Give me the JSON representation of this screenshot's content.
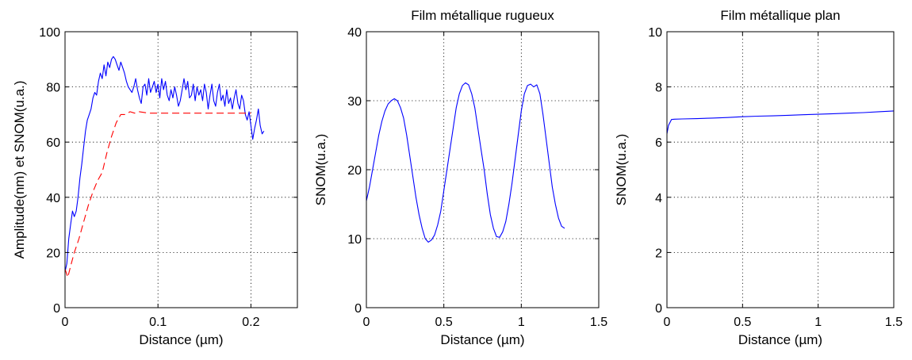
{
  "chart_data": [
    {
      "type": "line",
      "title": "",
      "xlabel": "Distance (µm)",
      "ylabel": "Amplitude(nm) et SNOM(u.a.)",
      "xlim": [
        0,
        0.25
      ],
      "ylim": [
        0,
        100
      ],
      "xticks": [
        "0",
        "0.1",
        "0.2"
      ],
      "xtick_values": [
        0,
        0.1,
        0.2
      ],
      "yticks": [
        "0",
        "20",
        "40",
        "60",
        "80",
        "100"
      ],
      "ytick_values": [
        0,
        20,
        40,
        60,
        80,
        100
      ],
      "grid": true,
      "series": [
        {
          "color": "#0000ff",
          "style": "solid",
          "x": [
            0,
            0.002,
            0.004,
            0.006,
            0.008,
            0.01,
            0.012,
            0.014,
            0.016,
            0.018,
            0.02,
            0.022,
            0.024,
            0.026,
            0.028,
            0.03,
            0.032,
            0.034,
            0.036,
            0.038,
            0.04,
            0.042,
            0.044,
            0.046,
            0.048,
            0.05,
            0.052,
            0.054,
            0.056,
            0.058,
            0.06,
            0.062,
            0.064,
            0.066,
            0.068,
            0.07,
            0.072,
            0.074,
            0.076,
            0.078,
            0.08,
            0.082,
            0.084,
            0.086,
            0.088,
            0.09,
            0.092,
            0.094,
            0.096,
            0.098,
            0.1,
            0.102,
            0.104,
            0.106,
            0.108,
            0.11,
            0.112,
            0.114,
            0.116,
            0.118,
            0.12,
            0.122,
            0.124,
            0.126,
            0.128,
            0.13,
            0.132,
            0.134,
            0.136,
            0.138,
            0.14,
            0.142,
            0.144,
            0.146,
            0.148,
            0.15,
            0.152,
            0.154,
            0.156,
            0.158,
            0.16,
            0.162,
            0.164,
            0.166,
            0.168,
            0.17,
            0.172,
            0.174,
            0.176,
            0.178,
            0.18,
            0.182,
            0.184,
            0.186,
            0.188,
            0.19,
            0.192,
            0.194,
            0.196,
            0.198,
            0.2,
            0.202,
            0.204,
            0.206,
            0.208,
            0.21,
            0.212,
            0.214
          ],
          "y": [
            13,
            16,
            25,
            30,
            35,
            33,
            35,
            40,
            47,
            52,
            58,
            64,
            68,
            70,
            72,
            76,
            78,
            77,
            82,
            85,
            83,
            88,
            84,
            89,
            87,
            90,
            91,
            90,
            88,
            86,
            89,
            87,
            85,
            82,
            80,
            79,
            78,
            80,
            83,
            79,
            76,
            74,
            80,
            81,
            77,
            83,
            78,
            80,
            82,
            78,
            81,
            76,
            83,
            79,
            82,
            77,
            75,
            79,
            76,
            80,
            77,
            73,
            75,
            79,
            83,
            79,
            82,
            76,
            77,
            81,
            75,
            80,
            77,
            79,
            75,
            81,
            78,
            72,
            77,
            81,
            75,
            73,
            78,
            81,
            75,
            77,
            73,
            79,
            74,
            76,
            72,
            76,
            79,
            74,
            72,
            77,
            75,
            70,
            68,
            71,
            66,
            61,
            65,
            68,
            72,
            66,
            63,
            64
          ]
        },
        {
          "color": "#ff0000",
          "style": "dashed",
          "x": [
            0,
            0.003,
            0.006,
            0.01,
            0.015,
            0.02,
            0.025,
            0.03,
            0.035,
            0.04,
            0.045,
            0.05,
            0.055,
            0.06,
            0.065,
            0.07,
            0.075,
            0.08,
            0.09,
            0.1,
            0.12,
            0.14,
            0.16,
            0.18,
            0.2
          ],
          "y": [
            14,
            11,
            15,
            20,
            25,
            31,
            37,
            42,
            46,
            49,
            56,
            62,
            67,
            70,
            70,
            71,
            70.5,
            71,
            70.5,
            70.5,
            70.5,
            70.5,
            70.5,
            70.5,
            70.5
          ]
        }
      ]
    },
    {
      "type": "line",
      "title": "Film métallique rugueux",
      "xlabel": "Distance (µm)",
      "ylabel": "SNOM(u.a.)",
      "xlim": [
        0,
        1.5
      ],
      "ylim": [
        0,
        40
      ],
      "xticks": [
        "0",
        "0.5",
        "1",
        "1.5"
      ],
      "xtick_values": [
        0,
        0.5,
        1,
        1.5
      ],
      "yticks": [
        "0",
        "10",
        "20",
        "30",
        "40"
      ],
      "ytick_values": [
        0,
        10,
        20,
        30,
        40
      ],
      "grid": true,
      "series": [
        {
          "color": "#0000ff",
          "style": "solid",
          "x": [
            0,
            0.02,
            0.04,
            0.06,
            0.08,
            0.1,
            0.12,
            0.14,
            0.16,
            0.18,
            0.2,
            0.22,
            0.24,
            0.26,
            0.28,
            0.3,
            0.32,
            0.34,
            0.36,
            0.38,
            0.4,
            0.42,
            0.44,
            0.46,
            0.48,
            0.5,
            0.52,
            0.54,
            0.56,
            0.58,
            0.6,
            0.62,
            0.64,
            0.66,
            0.68,
            0.7,
            0.72,
            0.74,
            0.76,
            0.78,
            0.8,
            0.82,
            0.84,
            0.86,
            0.88,
            0.9,
            0.92,
            0.94,
            0.96,
            0.98,
            1.0,
            1.02,
            1.04,
            1.06,
            1.08,
            1.1,
            1.12,
            1.14,
            1.16,
            1.18,
            1.2,
            1.22,
            1.24,
            1.26,
            1.28
          ],
          "y": [
            15.5,
            17.5,
            20,
            22.5,
            25,
            27,
            28.5,
            29.5,
            30,
            30.3,
            30,
            29,
            27.5,
            25,
            22,
            19,
            16,
            13.5,
            11.5,
            10,
            9.5,
            9.8,
            10.5,
            12,
            14,
            17,
            20,
            23,
            26,
            29,
            31,
            32.2,
            32.6,
            32.3,
            31,
            29,
            26,
            23,
            20,
            16.5,
            13.5,
            11.5,
            10.3,
            10.2,
            11,
            12.5,
            15,
            18,
            21.5,
            25,
            28.5,
            31,
            32.2,
            32.4,
            32,
            32.3,
            31,
            28,
            24.5,
            21,
            17.5,
            15,
            13,
            11.8,
            11.5
          ]
        }
      ]
    },
    {
      "type": "line",
      "title": "Film métallique plan",
      "xlabel": "Distance (µm)",
      "ylabel": "SNOM(u.a.)",
      "xlim": [
        0,
        1.5
      ],
      "ylim": [
        0,
        10
      ],
      "xticks": [
        "0",
        "0.5",
        "1",
        "1.5"
      ],
      "xtick_values": [
        0,
        0.5,
        1,
        1.5
      ],
      "yticks": [
        "0",
        "2",
        "4",
        "6",
        "8",
        "10"
      ],
      "ytick_values": [
        0,
        2,
        4,
        6,
        8,
        10
      ],
      "grid": true,
      "series": [
        {
          "color": "#0000ff",
          "style": "solid",
          "x": [
            0,
            0.01,
            0.03,
            0.05,
            0.1,
            0.2,
            0.3,
            0.4,
            0.5,
            0.6,
            0.7,
            0.8,
            0.9,
            1.0,
            1.1,
            1.2,
            1.3,
            1.4,
            1.5
          ],
          "y": [
            6.3,
            6.6,
            6.82,
            6.83,
            6.84,
            6.85,
            6.87,
            6.89,
            6.92,
            6.94,
            6.95,
            6.97,
            6.99,
            7.01,
            7.03,
            7.05,
            7.07,
            7.1,
            7.13
          ]
        }
      ]
    }
  ]
}
